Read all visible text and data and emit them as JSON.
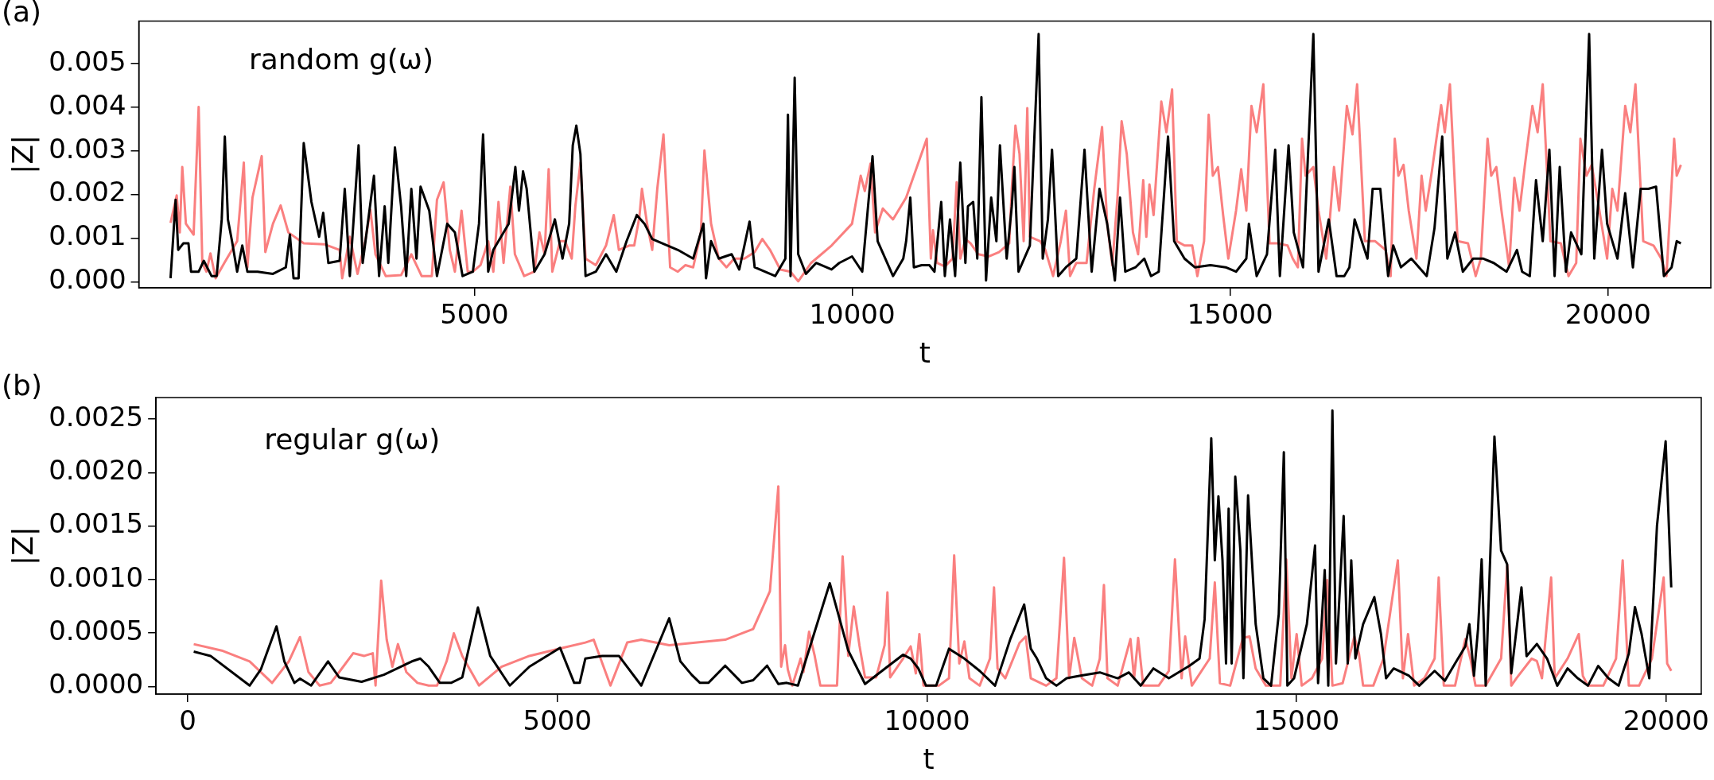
{
  "chart_data": [
    {
      "type": "line",
      "xlabel": "t",
      "ylabel": "|Z|",
      "annotations": [
        "(a)",
        "random g(ω)"
      ],
      "xlim": [
        560,
        21360
      ],
      "xticks": [
        5000,
        10000,
        15000,
        20000
      ],
      "ylim": [
        -0.00014,
        0.00598
      ],
      "yticks": [
        {
          "value": 0,
          "label": "0.000"
        },
        {
          "value": 0.001,
          "label": "0.001"
        },
        {
          "value": 0.002,
          "label": "0.002"
        },
        {
          "value": 0.003,
          "label": "0.003"
        },
        {
          "value": 0.004,
          "label": "0.004"
        },
        {
          "value": 0.005,
          "label": "0.005"
        }
      ],
      "grid": false,
      "legend": false,
      "marker": "none",
      "line_style": "solid",
      "series": [
        {
          "color": "#000000",
          "x": [
            980,
            1047,
            1081,
            1149,
            1217,
            1251,
            1352,
            1420,
            1522,
            1590,
            1657,
            1698,
            1739,
            1793,
            1861,
            1929,
            1997,
            2132,
            2335,
            2505,
            2559,
            2607,
            2674,
            2742,
            2844,
            2946,
            3000,
            3068,
            3217,
            3285,
            3352,
            3468,
            3522,
            3671,
            3739,
            3813,
            3861,
            3949,
            4030,
            4098,
            4166,
            4234,
            4288,
            4403,
            4505,
            4641,
            4742,
            4844,
            4980,
            5061,
            5115,
            5183,
            5251,
            5353,
            5454,
            5542,
            5590,
            5644,
            5692,
            5793,
            5929,
            6065,
            6166,
            6254,
            6302,
            6349,
            6403,
            6471,
            6607,
            6742,
            6878,
            7014,
            7149,
            7251,
            7353,
            7488,
            7692,
            7895,
            8031,
            8065,
            8132,
            8234,
            8404,
            8505,
            8641,
            8709,
            8844,
            8980,
            9115,
            9149,
            9183,
            9238,
            9285,
            9387,
            9522,
            9726,
            9827,
            9997,
            10132,
            10268,
            10336,
            10539,
            10675,
            10713,
            10768,
            10815,
            10918,
            11020,
            11088,
            11177,
            11225,
            11293,
            11361,
            11429,
            11497,
            11531,
            11600,
            11654,
            11709,
            11770,
            11838,
            11907,
            11954,
            12043,
            12111,
            12145,
            12200,
            12350,
            12466,
            12520,
            12589,
            12643,
            12725,
            12827,
            12964,
            13073,
            13168,
            13271,
            13373,
            13475,
            13543,
            13612,
            13748,
            13864,
            13953,
            14055,
            14178,
            14259,
            14396,
            14532,
            14737,
            14941,
            15078,
            15214,
            15248,
            15351,
            15487,
            15596,
            15658,
            15773,
            15842,
            15964,
            16101,
            16169,
            16305,
            16408,
            16510,
            16578,
            16647,
            16817,
            16885,
            16987,
            17090,
            17158,
            17260,
            17397,
            17499,
            17601,
            17704,
            17806,
            17874,
            17976,
            18079,
            18215,
            18351,
            18488,
            18658,
            18795,
            18863,
            18965,
            19047,
            19136,
            19224,
            19293,
            19361,
            19443,
            19511,
            19647,
            19750,
            19818,
            19920,
            19988,
            20125,
            20227,
            20329,
            20432,
            20534,
            20636,
            20739,
            20841,
            20909,
            20964
          ],
          "values": [
            8e-05,
            0.00188,
            0.00073,
            0.00088,
            0.00088,
            0.00023,
            0.00023,
            0.00048,
            0.00013,
            0.00013,
            0.00143,
            0.00333,
            0.00143,
            0.00093,
            0.00023,
            0.00083,
            0.00023,
            0.00023,
            0.00018,
            0.00033,
            0.00108,
            8e-05,
            8e-05,
            0.00318,
            0.00183,
            0.00103,
            0.00158,
            0.00043,
            0.00048,
            0.00213,
            0.00013,
            0.00313,
            0.00043,
            0.00243,
            0.00013,
            0.00173,
            0.00043,
            0.00308,
            0.00173,
            0.00013,
            0.00213,
            0.00053,
            0.00218,
            0.00163,
            0.00013,
            0.00133,
            0.00113,
            0.00013,
            0.00023,
            0.00133,
            0.00338,
            0.00023,
            0.00073,
            0.00103,
            0.00133,
            0.00263,
            0.00163,
            0.00253,
            0.00213,
            0.00023,
            0.00063,
            0.00143,
            0.00053,
            0.00133,
            0.00313,
            0.00358,
            0.00293,
            0.00013,
            0.00023,
            0.00063,
            0.00023,
            0.00093,
            0.00153,
            0.00133,
            0.00098,
            0.00088,
            0.00073,
            0.00053,
            0.00133,
            8e-05,
            0.00093,
            0.00053,
            0.00063,
            0.00028,
            0.00138,
            0.00033,
            0.00023,
            0.00013,
            0.00053,
            0.00383,
            0.00013,
            0.00468,
            0.00063,
            0.00018,
            0.00043,
            0.00028,
            0.00043,
            0.00058,
            0.00023,
            0.00288,
            0.00093,
            0.00013,
            0.00053,
            0.00093,
            0.00193,
            0.00033,
            0.00038,
            0.00038,
            0.00023,
            0.00183,
            0.00013,
            0.00143,
            0.00013,
            0.00273,
            0.00043,
            0.00173,
            0.00183,
            0.00053,
            0.00423,
            3e-05,
            0.00193,
            0.00093,
            0.00313,
            0.00053,
            0.00173,
            0.00263,
            0.00023,
            0.00083,
            0.00568,
            0.00053,
            0.00143,
            0.00303,
            0.00013,
            0.00033,
            0.00053,
            0.00303,
            0.00023,
            0.00213,
            0.00133,
            3e-05,
            0.00193,
            0.00023,
            0.00033,
            0.00053,
            0.00013,
            0.00023,
            0.00333,
            0.00093,
            0.00053,
            0.00033,
            0.00038,
            0.00033,
            0.00023,
            0.00053,
            0.00133,
            0.00013,
            0.00063,
            0.00303,
            0.00013,
            0.00313,
            0.00113,
            0.00033,
            0.00568,
            0.00023,
            0.00143,
            0.00013,
            0.00013,
            0.00033,
            0.00143,
            0.00053,
            0.00213,
            0.00213,
            0.00013,
            0.00083,
            0.00033,
            0.00053,
            0.00033,
            0.00013,
            0.00123,
            0.00333,
            0.00053,
            0.00113,
            0.00023,
            0.00053,
            0.00053,
            0.00043,
            0.00023,
            0.00073,
            0.00023,
            0.00013,
            0.00233,
            0.00093,
            0.00303,
            0.00013,
            0.00263,
            0.00023,
            0.00113,
            0.00063,
            0.00568,
            0.00053,
            0.00303,
            0.00133,
            0.00053,
            0.00203,
            0.00033,
            0.00213,
            0.00213,
            0.00218,
            0.00013,
            0.00033,
            0.00093,
            0.00088
          ]
        },
        {
          "color": "#fa7f7f",
          "x": [
            980,
            1061,
            1102,
            1135,
            1183,
            1285,
            1352,
            1400,
            1454,
            1508,
            1576,
            1691,
            1861,
            1949,
            1997,
            2064,
            2186,
            2234,
            2335,
            2437,
            2539,
            2742,
            3013,
            3217,
            3251,
            3352,
            3454,
            3556,
            3624,
            3691,
            3827,
            4030,
            4166,
            4302,
            4437,
            4505,
            4593,
            4675,
            4742,
            4830,
            4912,
            4980,
            5081,
            5183,
            5251,
            5319,
            5386,
            5475,
            5536,
            5658,
            5793,
            5861,
            5929,
            5983,
            6031,
            6133,
            6200,
            6288,
            6336,
            6403,
            6471,
            6607,
            6742,
            6844,
            6912,
            7048,
            7115,
            7183,
            7217,
            7285,
            7353,
            7420,
            7502,
            7590,
            7692,
            7793,
            7895,
            7997,
            8044,
            8132,
            8234,
            8336,
            8437,
            8573,
            8709,
            8810,
            8912,
            9048,
            9183,
            9285,
            9455,
            9726,
            9997,
            10112,
            10166,
            10241,
            10302,
            10404,
            10539,
            10713,
            10986,
            11040,
            11068,
            11122,
            11225,
            11327,
            11381,
            11429,
            11497,
            11566,
            11668,
            11804,
            11941,
            12077,
            12111,
            12159,
            12213,
            12268,
            12316,
            12350,
            12486,
            12554,
            12657,
            12759,
            12827,
            12882,
            12964,
            13100,
            13202,
            13305,
            13373,
            13441,
            13509,
            13564,
            13632,
            13714,
            13782,
            13850,
            13891,
            13932,
            13987,
            14089,
            14157,
            14232,
            14294,
            14396,
            14498,
            14566,
            14655,
            14716,
            14771,
            14839,
            14907,
            14976,
            15078,
            15146,
            15214,
            15282,
            15351,
            15439,
            15521,
            15623,
            15760,
            15828,
            15896,
            15951,
            15998,
            16101,
            16169,
            16271,
            16319,
            16374,
            16442,
            16544,
            16619,
            16680,
            16783,
            16919,
            17056,
            17124,
            17178,
            17226,
            17294,
            17363,
            17465,
            17533,
            17588,
            17669,
            17792,
            17840,
            17908,
            18010,
            18147,
            18249,
            18317,
            18406,
            18454,
            18522,
            18590,
            18692,
            18761,
            18829,
            18897,
            18999,
            19068,
            19136,
            19238,
            19375,
            19477,
            19579,
            19634,
            19715,
            19784,
            19886,
            19988,
            20056,
            20125,
            20227,
            20295,
            20363,
            20466,
            20602,
            20704,
            20773,
            20875,
            20909,
            20964
          ],
          "values": [
            0.00135,
            0.00198,
            0.00113,
            0.00263,
            0.00133,
            0.00108,
            0.00401,
            0.00043,
            0.00023,
            0.00065,
            8e-05,
            0.00043,
            0.00093,
            0.00273,
            0.00033,
            0.00193,
            0.00288,
            0.00068,
            0.00133,
            0.00175,
            0.00113,
            0.00088,
            0.00086,
            0.00073,
            8e-05,
            0.00103,
            0.00018,
            0.00093,
            0.00165,
            0.00063,
            0.00013,
            0.00015,
            0.00063,
            0.00013,
            0.00013,
            0.00188,
            0.00228,
            0.00073,
            0.00023,
            0.00163,
            0.00023,
            0.00023,
            0.00038,
            0.00093,
            0.00023,
            0.00183,
            0.00043,
            0.00218,
            0.00063,
            0.00013,
            0.00023,
            0.00113,
            0.00063,
            0.00258,
            0.00023,
            0.00093,
            0.00093,
            0.00053,
            0.00173,
            0.00273,
            0.00053,
            0.00038,
            0.00083,
            0.00153,
            0.00073,
            0.00083,
            0.00083,
            0.00148,
            0.00213,
            0.00133,
            0.00073,
            0.00213,
            0.00338,
            0.00033,
            0.00023,
            0.00038,
            0.00033,
            0.00113,
            0.00301,
            0.00133,
            0.00053,
            0.00033,
            0.00053,
            0.00053,
            0.00068,
            0.00098,
            0.00073,
            0.00028,
            0.00023,
            1e-05,
            0.00043,
            0.00083,
            0.00133,
            0.00243,
            0.00208,
            0.00271,
            0.00113,
            0.00168,
            0.00143,
            0.00193,
            0.00328,
            0.00053,
            0.00118,
            0.00043,
            0.00035,
            0.00053,
            0.00228,
            0.00053,
            0.00098,
            0.00088,
            0.00063,
            0.00058,
            0.00068,
            0.00088,
            0.00213,
            0.00358,
            0.00293,
            0.00093,
            0.00398,
            0.00103,
            0.00093,
            0.00073,
            0.00013,
            0.00093,
            0.00163,
            0.00013,
            0.00043,
            0.00043,
            0.00213,
            0.00355,
            0.00133,
            0.00038,
            0.00193,
            0.00368,
            0.00293,
            0.00113,
            0.00063,
            0.00233,
            0.00103,
            0.00223,
            0.00153,
            0.00413,
            0.00343,
            0.00441,
            0.00093,
            0.00083,
            0.00083,
            0.00013,
            0.00093,
            0.00383,
            0.00243,
            0.00263,
            0.00153,
            0.00053,
            0.00163,
            0.00258,
            0.00163,
            0.00403,
            0.00343,
            0.00453,
            0.00088,
            0.00088,
            0.00083,
            0.00053,
            0.00033,
            0.00328,
            0.00243,
            0.00263,
            0.00163,
            0.00053,
            0.00143,
            0.00263,
            0.00163,
            0.00403,
            0.00338,
            0.00453,
            0.00093,
            0.00093,
            0.00073,
            0.00013,
            0.00328,
            0.00243,
            0.00268,
            0.00163,
            0.00053,
            0.00243,
            0.00163,
            0.00253,
            0.00405,
            0.00343,
            0.00453,
            0.00093,
            0.00088,
            0.00013,
            0.00053,
            0.00328,
            0.00243,
            0.00263,
            0.00163,
            0.00033,
            0.00238,
            0.00163,
            0.00263,
            0.00403,
            0.00343,
            0.00453,
            0.00093,
            0.00088,
            0.00013,
            0.00043,
            0.00328,
            0.00243,
            0.00268,
            0.00163,
            0.00053,
            0.00213,
            0.00163,
            0.00403,
            0.00343,
            0.00453,
            0.00093,
            0.00083,
            0.00053,
            0.00013,
            0.00328,
            0.00243,
            0.00268
          ]
        }
      ]
    },
    {
      "type": "line",
      "xlabel": "t",
      "ylabel": "|Z|",
      "annotations": [
        "(b)",
        "regular g(ω)"
      ],
      "xlim": [
        -430,
        20475
      ],
      "xticks": [
        0,
        5000,
        10000,
        15000,
        20000
      ],
      "ylim": [
        -7e-05,
        0.0027
      ],
      "yticks": [
        {
          "value": 0,
          "label": "0.0000"
        },
        {
          "value": 0.0005,
          "label": "0.0005"
        },
        {
          "value": 0.001,
          "label": "0.0010"
        },
        {
          "value": 0.0015,
          "label": "0.0015"
        },
        {
          "value": 0.002,
          "label": "0.0020"
        },
        {
          "value": 0.0025,
          "label": "0.0025"
        }
      ],
      "grid": false,
      "legend": false,
      "marker": "none",
      "line_style": "solid",
      "series": [
        {
          "color": "#000000",
          "x": [
            80,
            307,
            837,
            988,
            1200,
            1306,
            1442,
            1518,
            1669,
            1897,
            2048,
            2351,
            2653,
            3032,
            3145,
            3259,
            3410,
            3561,
            3713,
            3925,
            4091,
            4356,
            4621,
            5037,
            5227,
            5302,
            5378,
            5605,
            5832,
            6135,
            6513,
            6664,
            6816,
            6929,
            7043,
            7270,
            7497,
            7648,
            7837,
            7989,
            8102,
            8254,
            8685,
            8935,
            9162,
            9465,
            9676,
            9780,
            9883,
            9987,
            10125,
            10298,
            10506,
            10713,
            10921,
            11128,
            11315,
            11405,
            11488,
            11612,
            11751,
            11889,
            12062,
            12338,
            12580,
            12732,
            12891,
            13064,
            13272,
            13548,
            13687,
            13756,
            13846,
            13894,
            13943,
            13998,
            14046,
            14081,
            14122,
            14171,
            14240,
            14281,
            14344,
            14447,
            14551,
            14655,
            14759,
            14828,
            14876,
            14966,
            15139,
            15250,
            15291,
            15381,
            15429,
            15485,
            15533,
            15637,
            15692,
            15740,
            15796,
            15900,
            16052,
            16142,
            16211,
            16314,
            16522,
            16660,
            16868,
            17006,
            17144,
            17283,
            17338,
            17400,
            17455,
            17504,
            17559,
            17677,
            17767,
            17849,
            17905,
            18043,
            18112,
            18251,
            18389,
            18527,
            18666,
            18804,
            18942,
            19080,
            19219,
            19357,
            19495,
            19578,
            19668,
            19772,
            19876,
            19993,
            20069
          ],
          "values": [
            0.000327,
            0.000287,
            1e-05,
            0.000161,
            0.000563,
            0.000236,
            3.5e-05,
            7.5e-05,
            1e-05,
            0.000236,
            8.6e-05,
            4.5e-05,
            0.000111,
            0.000236,
            0.000262,
            0.000186,
            3.5e-05,
            3.5e-05,
            8.6e-05,
            0.000739,
            0.000287,
            1e-05,
            0.000186,
            0.000362,
            3.5e-05,
            3.5e-05,
            0.000262,
            0.000287,
            0.000287,
            1e-05,
            0.000639,
            0.000236,
            0.000111,
            3.5e-05,
            3.5e-05,
            0.000196,
            3.5e-05,
            6e-05,
            0.000196,
            2.5e-05,
            3.5e-05,
            1e-05,
            0.000966,
            0.000337,
            2.5e-05,
            0.000186,
            0.000298,
            0.000262,
            0.00017,
            9e-06,
            9e-06,
            0.000354,
            0.000262,
            0.000147,
            9e-06,
            0.000445,
            0.000767,
            0.000354,
            0.000262,
            7.8e-05,
            9e-06,
            7.8e-05,
            0.000101,
            0.000133,
            7.8e-05,
            0.000133,
            9e-06,
            0.00017,
            7.8e-05,
            0.000193,
            0.000262,
            0.000629,
            0.002319,
            0.00118,
            0.001777,
            0.00118,
            0.000216,
            0.001662,
            0.000216,
            0.001961,
            0.001272,
            7.8e-05,
            0.001786,
            0.000583,
            7.8e-05,
            9e-06,
            0.000675,
            0.00219,
            9e-06,
            7.8e-05,
            0.000583,
            0.001318,
            3.2e-05,
            0.001088,
            9e-06,
            0.00258,
            0.000216,
            0.001593,
            0.000216,
            0.00118,
            0.000262,
            0.000583,
            0.000836,
            0.000491,
            7.8e-05,
            0.00017,
            0.000101,
            9e-06,
            0.000147,
            5.5e-05,
            0.000216,
            0.000376,
            0.000583,
            0.000101,
            0.000537,
            0.001189,
            9e-06,
            0.002337,
            0.001272,
            0.001143,
            0.000124,
            0.000927,
            0.000285,
            0.000399,
            0.000262,
            9e-06,
            0.00017,
            7.8e-05,
            9e-06,
            0.000193,
            7.8e-05,
            9e-06,
            0.000308,
            0.000744,
            0.000491,
            7.8e-05,
            0.001501,
            0.002291,
            0.000927
          ]
        },
        {
          "color": "#fa7f7f",
          "x": [
            80,
            459,
            837,
            1140,
            1367,
            1518,
            1632,
            1783,
            1934,
            2048,
            2237,
            2388,
            2502,
            2540,
            2616,
            2691,
            2767,
            2843,
            2956,
            3107,
            3259,
            3372,
            3501,
            3599,
            3713,
            3940,
            4243,
            4621,
            5075,
            5378,
            5491,
            5718,
            5945,
            6135,
            6513,
            7270,
            7648,
            7875,
            7989,
            8027,
            8080,
            8117,
            8178,
            8291,
            8329,
            8405,
            8481,
            8557,
            8783,
            8859,
            8935,
            9010,
            9086,
            9162,
            9313,
            9427,
            9465,
            9502,
            9676,
            9780,
            9849,
            9897,
            9953,
            10160,
            10298,
            10368,
            10437,
            10506,
            10575,
            10713,
            10852,
            10907,
            10955,
            11059,
            11253,
            11336,
            11405,
            11612,
            11751,
            11854,
            11923,
            11993,
            12096,
            12235,
            12338,
            12394,
            12442,
            12580,
            12753,
            12802,
            12857,
            12926,
            13134,
            13272,
            13355,
            13445,
            13493,
            13583,
            13825,
            13894,
            13963,
            14102,
            14274,
            14364,
            14447,
            14586,
            14779,
            14862,
            14931,
            15001,
            15070,
            15208,
            15346,
            15415,
            15485,
            15623,
            15782,
            15844,
            15900,
            16038,
            16176,
            16370,
            16439,
            16508,
            16591,
            16729,
            16868,
            16923,
            16992,
            17144,
            17283,
            17352,
            17421,
            17559,
            17767,
            17850,
            17905,
            17974,
            18181,
            18251,
            18320,
            18444,
            18493,
            18666,
            18818,
            18873,
            18942,
            19150,
            19322,
            19412,
            19495,
            19634,
            19807,
            19966,
            20014,
            20069
          ],
          "values": [
            0.000397,
            0.000337,
            0.000236,
            3.5e-05,
            0.000236,
            0.000463,
            0.000136,
            1e-05,
            3.5e-05,
            0.000136,
            0.000312,
            0.000287,
            0.000312,
            1e-05,
            0.000991,
            0.000438,
            0.000186,
            0.000397,
            0.000136,
            3.5e-05,
            1e-05,
            1e-05,
            0.000236,
            0.000498,
            0.000287,
            1e-05,
            0.000186,
            0.000287,
            0.000362,
            0.000412,
            0.000438,
            1e-05,
            0.000412,
            0.000438,
            0.000387,
            0.000438,
            0.000538,
            0.00089,
            0.001871,
            0.000186,
            0.000387,
            0.000161,
            1e-05,
            0.000262,
            0.000136,
            0.000513,
            0.000287,
            1e-05,
            1e-05,
            0.001217,
            0.000287,
            0.000749,
            0.000387,
            8.6e-05,
            8.6e-05,
            0.000387,
            0.00088,
            8.6e-05,
            0.000262,
            0.000376,
            0.000124,
            0.000491,
            9e-06,
            9e-06,
            7.8e-05,
            0.001226,
            0.000216,
            0.000422,
            7.8e-05,
            9e-06,
            0.000262,
            0.000927,
            0.00017,
            7.8e-05,
            0.000409,
            0.000468,
            7.8e-05,
            9e-06,
            7.8e-05,
            0.001203,
            7.8e-05,
            0.000455,
            7.8e-05,
            9e-06,
            0.000262,
            0.00095,
            7.8e-05,
            9e-06,
            0.000445,
            7.8e-05,
            0.000455,
            9e-06,
            9e-06,
            0.000147,
            0.001189,
            7.8e-05,
            0.000468,
            9e-06,
            0.000262,
            0.000973,
            3.2e-05,
            9e-06,
            0.000455,
            0.000468,
            0.00017,
            9e-06,
            9e-06,
            0.001189,
            7.8e-05,
            0.000491,
            9e-06,
            7.8e-05,
            0.000262,
            0.000996,
            9e-06,
            3.2e-05,
            0.000468,
            0.000308,
            9e-06,
            9e-06,
            0.000262,
            0.00118,
            7.8e-05,
            0.000491,
            9e-06,
            7.8e-05,
            0.000262,
            0.001019,
            9e-06,
            9e-06,
            0.000445,
            0.000262,
            9e-06,
            9e-06,
            0.000262,
            0.001134,
            9e-06,
            7.8e-05,
            0.000262,
            0.000239,
            7.8e-05,
            0.001019,
            7.8e-05,
            0.000262,
            0.000491,
            0.000101,
            9e-06,
            9e-06,
            0.000262,
            0.00118,
            9e-06,
            9e-06,
            0.000262,
            0.001019,
            0.000216,
            0.000147
          ]
        }
      ]
    }
  ]
}
